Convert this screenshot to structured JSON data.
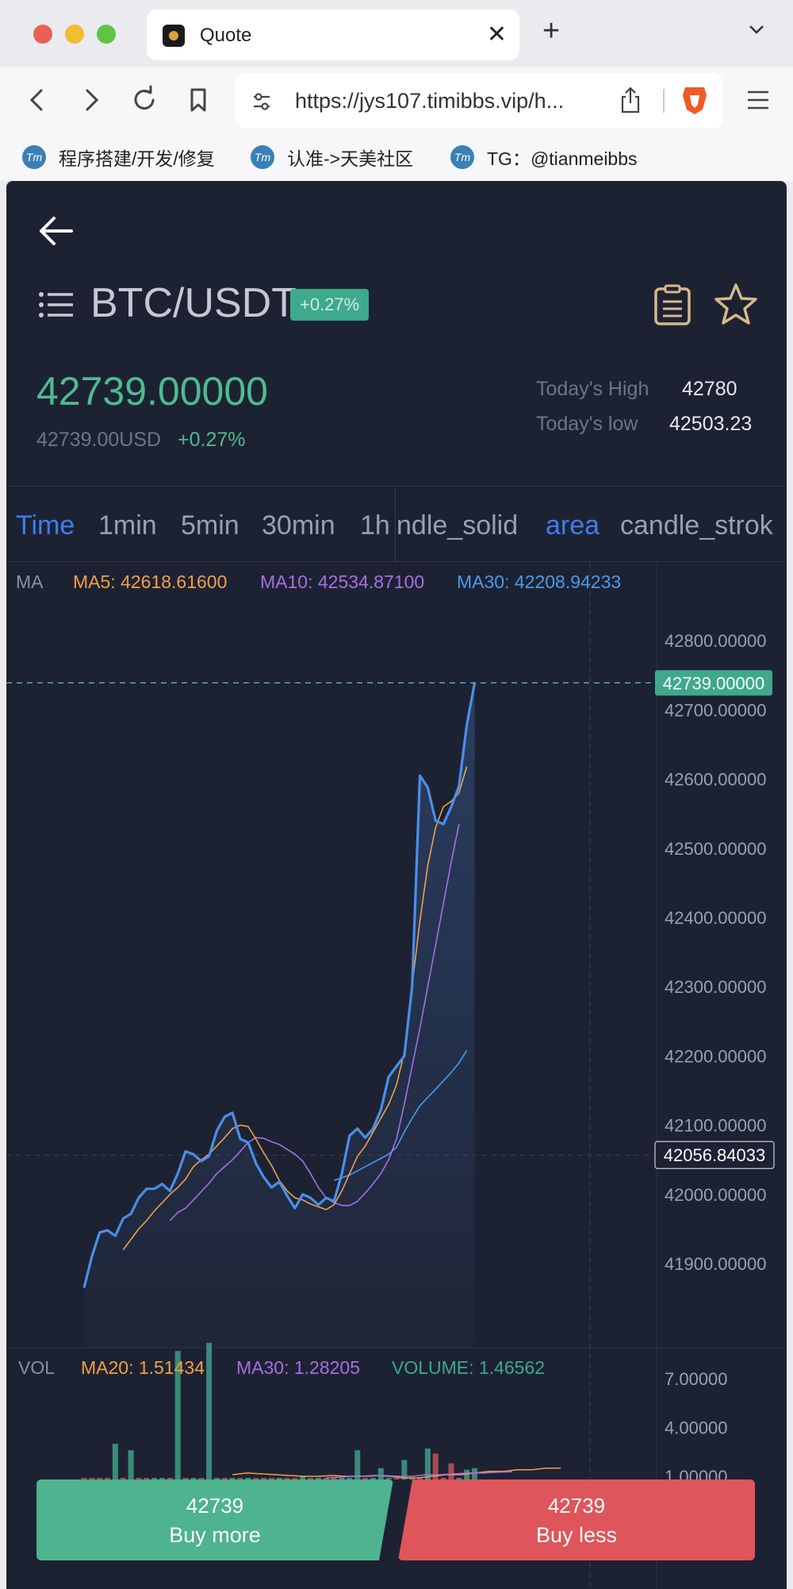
{
  "browser": {
    "tab_title": "Quote",
    "url": "https://jys107.timibbs.vip/h...",
    "bookmarks": [
      {
        "label": "程序搭建/开发/修复"
      },
      {
        "label": "认准->天美社区"
      },
      {
        "label": "TG：@tianmeibbs"
      }
    ],
    "bookmark_icon_text": "Tm"
  },
  "header": {
    "pair": "BTC/USDT",
    "change_badge": "+0.27%",
    "last_price": "42739.00000",
    "usd_price": "42739.00USD",
    "usd_change": "+0.27%",
    "high_label": "Today's High",
    "high_value": "42780",
    "low_label": "Today's low",
    "low_value": "42503.23"
  },
  "time_tabs": [
    {
      "label": "Time",
      "active": true
    },
    {
      "label": "1min"
    },
    {
      "label": "5min"
    },
    {
      "label": "30min"
    },
    {
      "label": "1h"
    }
  ],
  "style_tabs": [
    {
      "label": "ndle_solid"
    },
    {
      "label": "area",
      "active": true
    },
    {
      "label": "candle_strok"
    }
  ],
  "main_legend": {
    "label": "MA",
    "ma5": "MA5: 42618.61600",
    "ma10": "MA10: 42534.87100",
    "ma30": "MA30: 42208.94233"
  },
  "vol_legend": {
    "label": "VOL",
    "ma20": "MA20: 1.51434",
    "ma30": "MA30: 1.28205",
    "volume": "VOLUME: 1.46562"
  },
  "colors": {
    "up": "#4dbb8f",
    "down": "#de555b",
    "price_line": "#4a8fe8",
    "ma5": "#f0a045",
    "ma10": "#a66fe0",
    "ma30": "#4a9ae8",
    "accent": "#3d7ef0"
  },
  "chart_data": {
    "type": "area",
    "ylim": [
      41820,
      42900
    ],
    "yticks": [
      "42800.00000",
      "42700.00000",
      "42600.00000",
      "42500.00000",
      "42400.00000",
      "42300.00000",
      "42200.00000",
      "42100.00000",
      "42000.00000",
      "41900.00000"
    ],
    "last_price_label": "42739.00000",
    "crosshair_label": "42056.84033",
    "crosshair_value": 42056.84,
    "price": [
      41865,
      41910,
      41945,
      41948,
      41940,
      41965,
      41972,
      41995,
      42008,
      42008,
      42015,
      42005,
      42030,
      42062,
      42058,
      42048,
      42055,
      42092,
      42112,
      42118,
      42080,
      42075,
      42045,
      42025,
      42010,
      42018,
      41998,
      41980,
      42000,
      41995,
      41985,
      41995,
      41990,
      42030,
      42085,
      42095,
      42082,
      42095,
      42122,
      42170,
      42185,
      42200,
      42300,
      42605,
      42588,
      42540,
      42535,
      42560,
      42590,
      42678,
      42739
    ],
    "ma5_start": 5,
    "ma5": [
      41920,
      41935,
      41950,
      41962,
      41976,
      41988,
      42000,
      42010,
      42022,
      42040,
      42050,
      42058,
      42070,
      42082,
      42095,
      42100,
      42098,
      42080,
      42060,
      42042,
      42020,
      42005,
      41995,
      41992,
      41986,
      41982,
      41978,
      41985,
      42005,
      42030,
      42055,
      42070,
      42090,
      42110,
      42130,
      42158,
      42205,
      42302,
      42395,
      42475,
      42530,
      42560,
      42568,
      42580,
      42618
    ],
    "ma10_start": 11,
    "ma10": [
      41962,
      41974,
      41980,
      41992,
      42004,
      42016,
      42030,
      42040,
      42050,
      42062,
      42075,
      42082,
      42081,
      42076,
      42072,
      42065,
      42058,
      42048,
      42030,
      42010,
      41995,
      41988,
      41984,
      41984,
      41990,
      42002,
      42015,
      42030,
      42050,
      42080,
      42130,
      42185,
      42240,
      42300,
      42360,
      42420,
      42480,
      42535
    ],
    "ma30_start": 32,
    "ma30": [
      42020,
      42024,
      42028,
      42034,
      42040,
      42046,
      42052,
      42058,
      42068,
      42090,
      42110,
      42128,
      42140,
      42152,
      42164,
      42176,
      42190,
      42208
    ],
    "vol_yticks": [
      "7.00000",
      "4.00000",
      "1.00000"
    ],
    "volume": [
      0.2,
      0.3,
      0.4,
      0.5,
      3.0,
      0.3,
      2.6,
      0.2,
      0.3,
      0.5,
      0.5,
      0.6,
      8.7,
      0.3,
      0.4,
      0.3,
      9.2,
      0.5,
      0.3,
      0.5,
      0.3,
      0.4,
      0.5,
      0.3,
      0.4,
      0.6,
      0.3,
      0.5,
      1.0,
      0.7,
      0.4,
      0.6,
      0.3,
      0.8,
      0.5,
      2.6,
      0.4,
      0.9,
      1.5,
      0.6,
      0.4,
      2.0,
      0.8,
      0.5,
      2.7,
      2.4,
      0.7,
      1.8,
      0.6,
      1.4,
      1.5
    ],
    "vol_up": [
      0,
      0,
      0,
      0,
      1,
      0,
      1,
      0,
      0,
      1,
      1,
      0,
      1,
      0,
      1,
      0,
      1,
      1,
      0,
      1,
      0,
      1,
      0,
      0,
      0,
      1,
      0,
      0,
      1,
      0,
      1,
      0,
      0,
      1,
      1,
      1,
      0,
      1,
      1,
      1,
      0,
      1,
      1,
      0,
      1,
      0,
      0,
      0,
      1,
      1,
      1
    ],
    "vol_ma20": [
      1.1,
      1.2,
      1.15,
      1.1,
      1.05,
      1.0,
      1.0,
      1.05,
      1.0,
      1.0,
      1.05,
      1.0,
      0.9,
      0.9,
      1.0,
      1.1,
      1.1,
      1.2,
      1.3,
      1.3,
      1.4,
      1.4,
      1.5,
      1.5
    ],
    "vol_ma30": [
      0.9,
      0.95,
      1.0,
      1.0,
      1.05,
      1.0,
      1.0,
      1.1,
      1.1,
      1.15,
      1.2,
      1.2,
      1.25,
      1.28
    ]
  },
  "footer": {
    "buy_price": "42739",
    "buy_label": "Buy more",
    "sell_price": "42739",
    "sell_label": "Buy less"
  }
}
